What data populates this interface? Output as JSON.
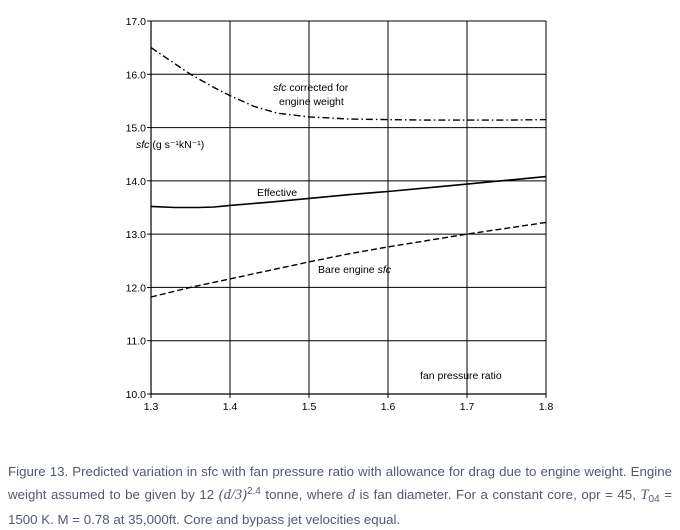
{
  "chart_data": {
    "type": "line",
    "title": "",
    "xlabel": "fan pressure ratio",
    "ylabel": "sfc (g s⁻¹kN⁻¹)",
    "xlim": [
      1.3,
      1.8
    ],
    "ylim": [
      10.0,
      17.0
    ],
    "grid": true,
    "x_ticks": [
      "1.3",
      "1.4",
      "1.5",
      "1.6",
      "1.7",
      "1.8"
    ],
    "y_ticks": [
      "10.0",
      "11.0",
      "12.0",
      "13.0",
      "14.0",
      "15.0",
      "16.0",
      "17.0"
    ],
    "series": [
      {
        "name": "sfc corrected for engine weight",
        "style": "dashdot",
        "x": [
          1.3,
          1.32,
          1.35,
          1.38,
          1.4,
          1.43,
          1.46,
          1.5,
          1.55,
          1.6,
          1.65,
          1.7,
          1.75,
          1.8
        ],
        "y": [
          16.5,
          16.3,
          16.0,
          15.75,
          15.6,
          15.4,
          15.27,
          15.2,
          15.16,
          15.15,
          15.14,
          15.14,
          15.14,
          15.15
        ]
      },
      {
        "name": "Effective",
        "style": "solid",
        "x": [
          1.3,
          1.33,
          1.36,
          1.38,
          1.4,
          1.45,
          1.5,
          1.55,
          1.6,
          1.65,
          1.7,
          1.75,
          1.8
        ],
        "y": [
          13.52,
          13.5,
          13.5,
          13.51,
          13.54,
          13.6,
          13.67,
          13.74,
          13.8,
          13.87,
          13.94,
          14.01,
          14.08
        ]
      },
      {
        "name": "Bare engine sfc",
        "style": "dashed",
        "x": [
          1.3,
          1.35,
          1.4,
          1.45,
          1.5,
          1.55,
          1.6,
          1.65,
          1.7,
          1.75,
          1.8
        ],
        "y": [
          11.82,
          12.0,
          12.16,
          12.32,
          12.48,
          12.63,
          12.76,
          12.88,
          13.0,
          13.11,
          13.22
        ]
      }
    ],
    "annotations": [
      {
        "id": "corrected-line1",
        "text": "sfc",
        "x": 1.42,
        "y": 15.81
      },
      {
        "id": "corrected-line1b",
        "text": "corrected for",
        "x": 1.42,
        "y": 15.81
      },
      {
        "id": "corrected-line2",
        "text": "engine weight",
        "x": 1.46,
        "y": 15.51
      },
      {
        "id": "effective",
        "text": "Effective",
        "x": 1.433,
        "y": 13.73
      },
      {
        "id": "bare",
        "text": "Bare engine",
        "x": 1.51,
        "y": 12.3
      },
      {
        "id": "bare-sfc",
        "text": "sfc",
        "x": 1.51,
        "y": 12.3
      }
    ]
  },
  "caption": {
    "lead": "Figure 13. Predicted variation in sfc with fan pressure ratio with allowance for drag due to engine weight. Engine weight assumed to be given by 12 ",
    "formula_base": "(d/3)",
    "formula_exp": "2.4",
    "mid": " tonne, where ",
    "var_d": "d",
    "mid2": " is fan diameter. For a constant core, opr = 45, ",
    "var_T": "T",
    "var_T_sub": "04",
    "tail": " = 1500 K. M = 0.78 at 35,000ft. Core and bypass jet velocities equal."
  }
}
